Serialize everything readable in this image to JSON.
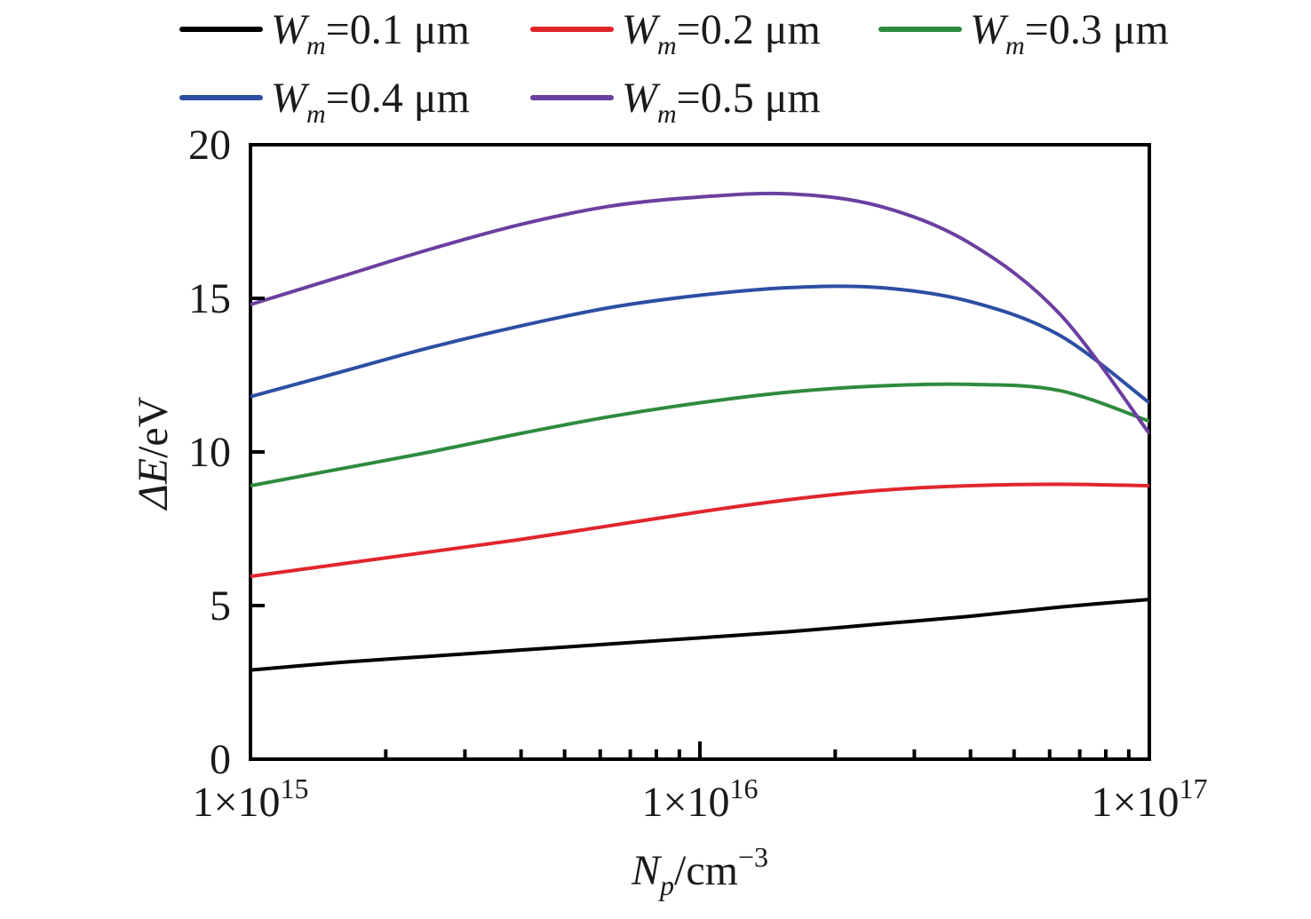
{
  "chart_data": {
    "type": "line",
    "xlabel": "N_p/cm^-3",
    "ylabel": "ΔE/eV",
    "x_scale": "log",
    "xlim": [
      1000000000000000.0,
      1e+17
    ],
    "ylim": [
      0,
      20
    ],
    "grid": false,
    "legend_position": "top",
    "x_ticks": [
      {
        "value": 1000000000000000.0,
        "base": "1×10",
        "exp": "15"
      },
      {
        "value": 1e+16,
        "base": "1×10",
        "exp": "16"
      },
      {
        "value": 1e+17,
        "base": "1×10",
        "exp": "17"
      }
    ],
    "y_ticks": [
      {
        "value": 0,
        "label": "0"
      },
      {
        "value": 5,
        "label": "5"
      },
      {
        "value": 10,
        "label": "10"
      },
      {
        "value": 15,
        "label": "15"
      },
      {
        "value": 20,
        "label": "20"
      }
    ],
    "x": [
      1000000000000000.0,
      1585000000000000.0,
      2512000000000000.0,
      3981000000000000.0,
      6310000000000000.0,
      1e+16,
      1.585e+16,
      2.512e+16,
      3.981e+16,
      6.31e+16,
      1e+17
    ],
    "series": [
      {
        "name": "W_m=0.1 μm",
        "color": "#000000",
        "values": [
          2.9,
          3.15,
          3.35,
          3.55,
          3.75,
          3.95,
          4.15,
          4.4,
          4.65,
          4.95,
          5.2
        ]
      },
      {
        "name": "W_m=0.2 μm",
        "color": "#e0262c",
        "values": [
          5.95,
          6.35,
          6.75,
          7.15,
          7.6,
          8.05,
          8.45,
          8.75,
          8.9,
          8.95,
          8.9
        ]
      },
      {
        "name": "W_m=0.3 μm",
        "color": "#2e8b3e",
        "values": [
          8.9,
          9.45,
          10.0,
          10.6,
          11.15,
          11.6,
          11.95,
          12.15,
          12.2,
          12.0,
          11.0
        ]
      },
      {
        "name": "W_m=0.4 μm",
        "color": "#2c4fa3",
        "values": [
          11.8,
          12.6,
          13.4,
          14.1,
          14.7,
          15.1,
          15.35,
          15.35,
          14.9,
          13.8,
          11.6
        ]
      },
      {
        "name": "W_m=0.5 μm",
        "color": "#6b3fa0",
        "values": [
          14.8,
          15.7,
          16.6,
          17.4,
          18.0,
          18.3,
          18.4,
          18.0,
          16.8,
          14.5,
          10.6
        ]
      }
    ]
  },
  "legend": {
    "entries": [
      {
        "label": "W_m=0.1 μm"
      },
      {
        "label": "W_m=0.2 μm"
      },
      {
        "label": "W_m=0.3 μm"
      },
      {
        "label": "W_m=0.4 μm"
      },
      {
        "label": "W_m=0.5 μm"
      }
    ]
  },
  "axes": {
    "x_title_main": "N",
    "x_title_sub": "p",
    "x_title_rest": "/cm",
    "x_title_sup": "−3",
    "y_title_main": "ΔE",
    "y_title_rest": "/eV"
  },
  "legend_parts": {
    "var": "W",
    "sub": "m",
    "values": [
      "=0.1 μm",
      "=0.2 μm",
      "=0.3 μm",
      "=0.4 μm",
      "=0.5 μm"
    ]
  }
}
